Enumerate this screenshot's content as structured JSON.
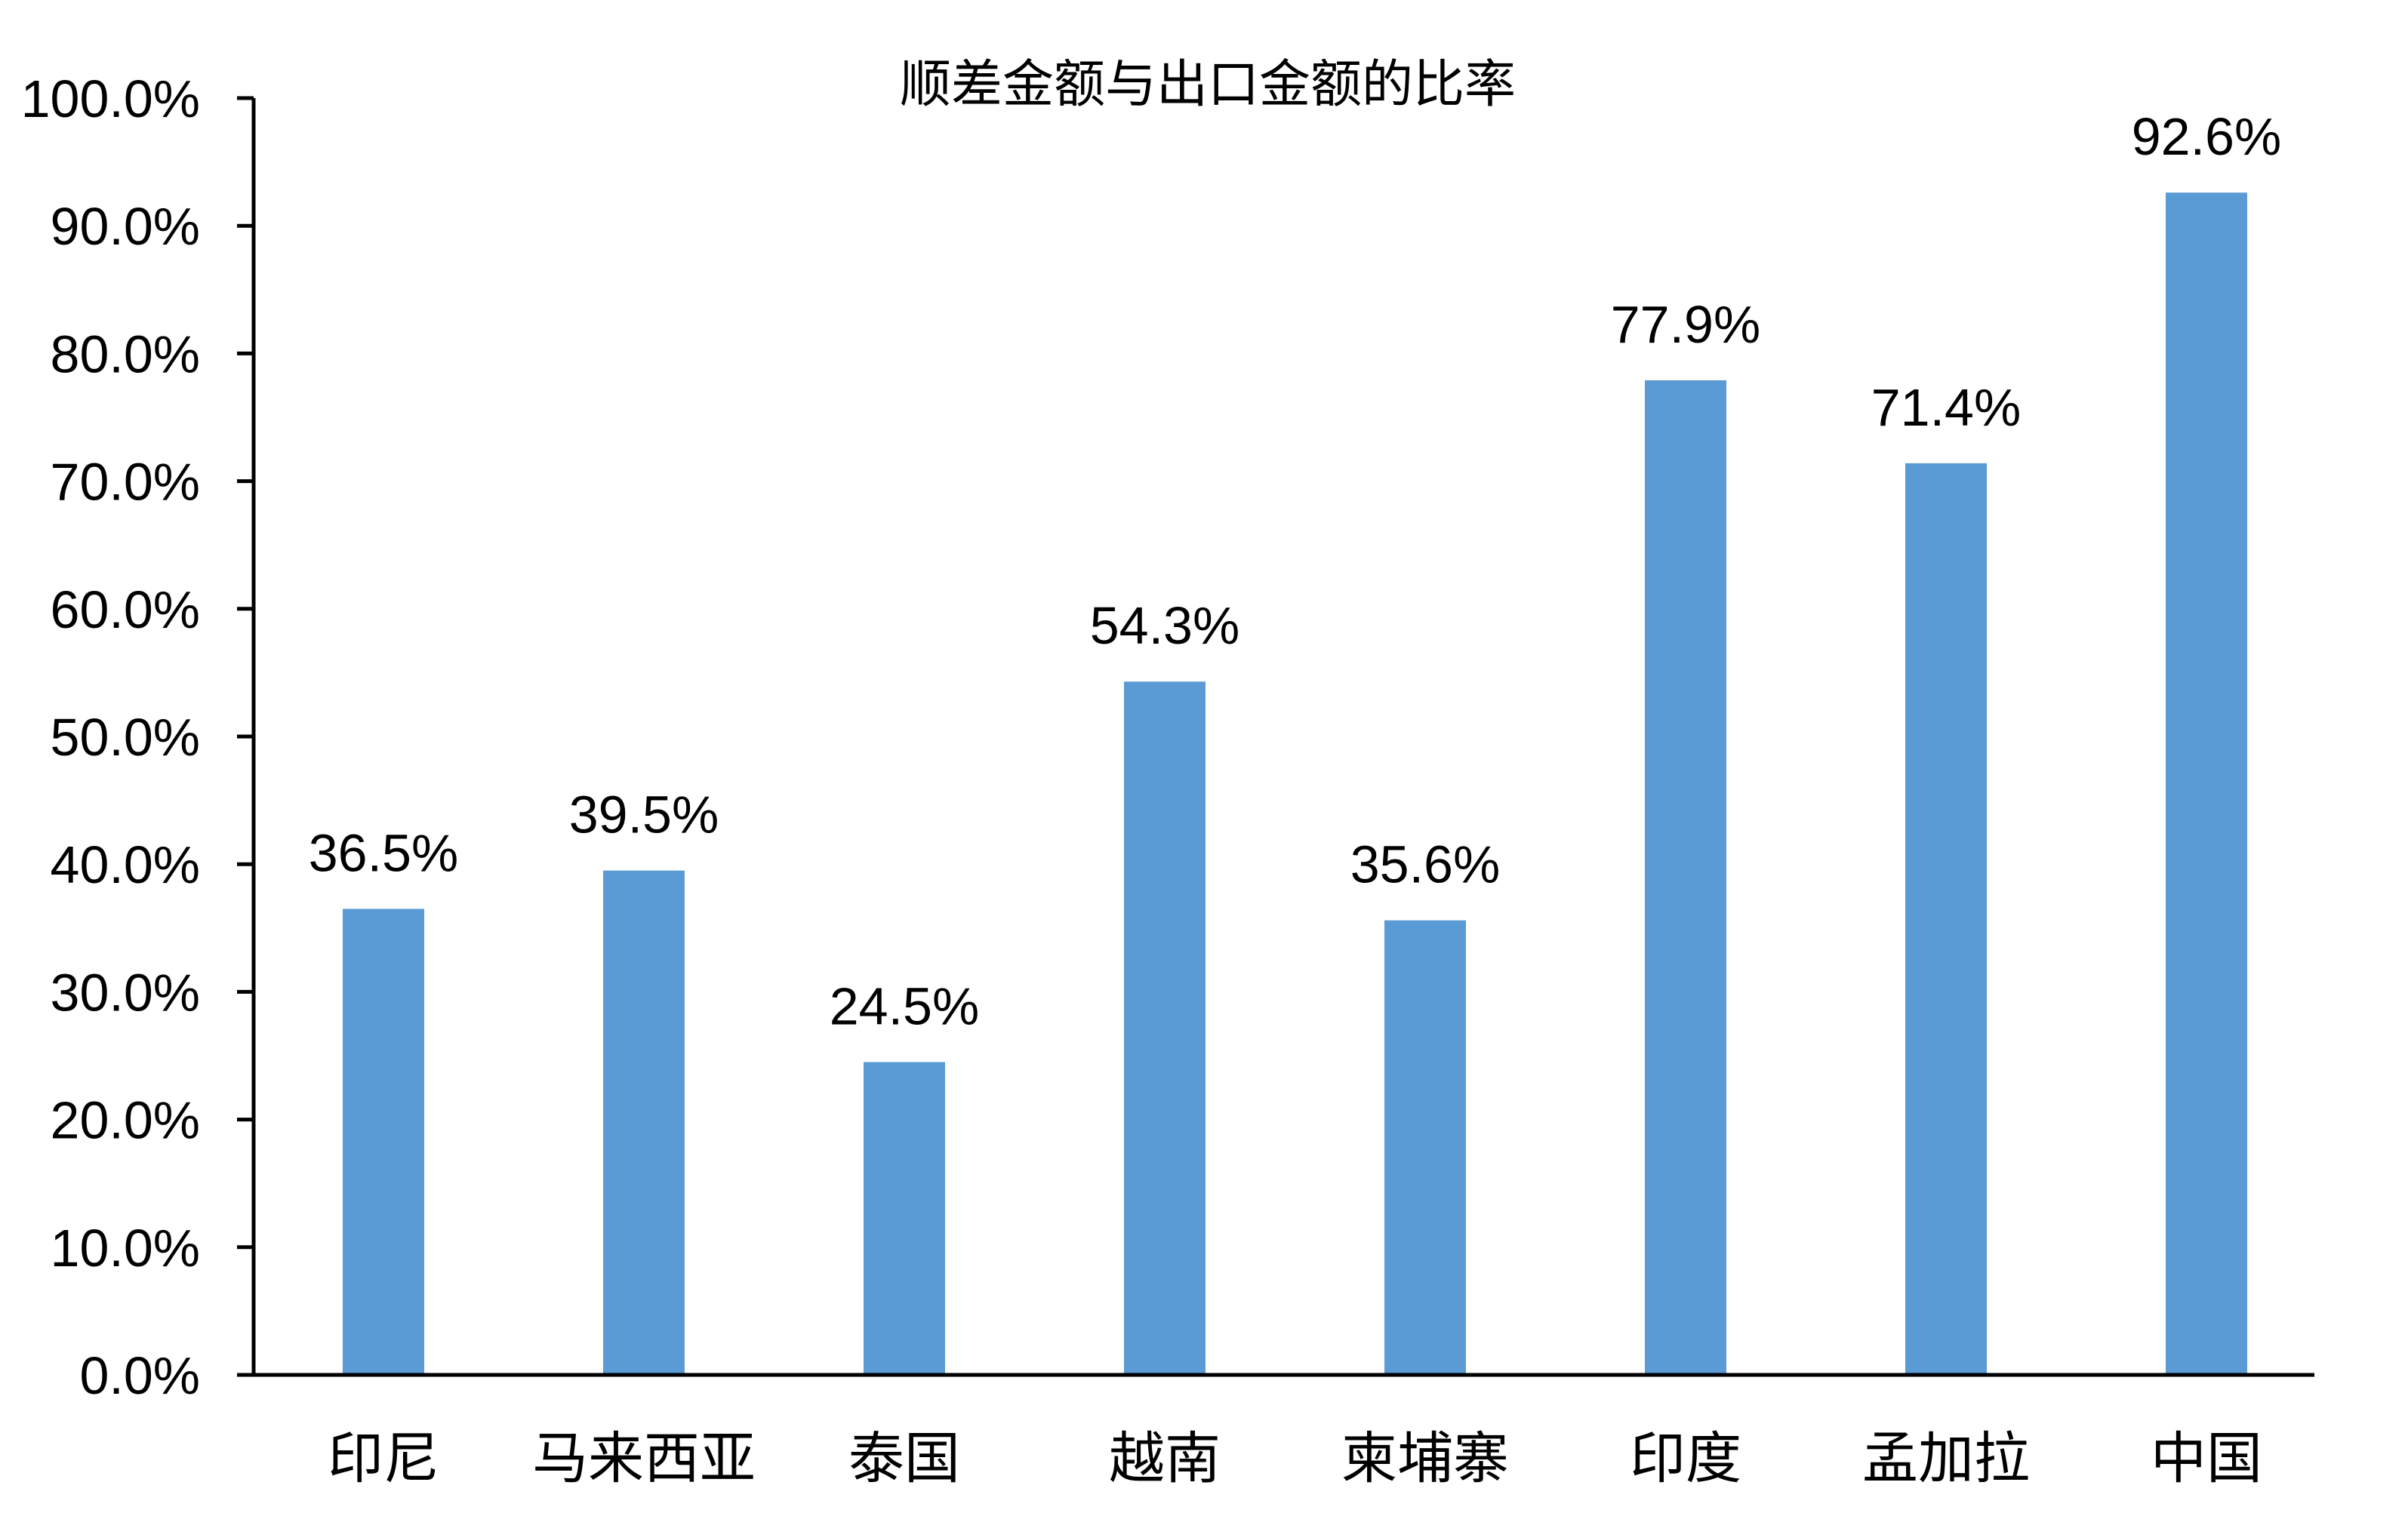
{
  "chart_data": {
    "type": "bar",
    "title": "顺差金额与出口金额的比率",
    "categories": [
      "印尼",
      "马来西亚",
      "泰国",
      "越南",
      "柬埔寨",
      "印度",
      "孟加拉",
      "中国"
    ],
    "values": [
      36.5,
      39.5,
      24.5,
      54.3,
      35.6,
      77.9,
      71.4,
      92.6
    ],
    "data_labels": [
      "36.5%",
      "39.5%",
      "24.5%",
      "54.3%",
      "35.6%",
      "77.9%",
      "71.4%",
      "92.6%"
    ],
    "y_ticks": [
      "0.0%",
      "10.0%",
      "20.0%",
      "30.0%",
      "40.0%",
      "50.0%",
      "60.0%",
      "70.0%",
      "80.0%",
      "90.0%",
      "100.0%"
    ],
    "ylim": [
      0,
      100
    ],
    "xlabel": "",
    "ylabel": "",
    "grid": false,
    "legend": "none",
    "bar_color": "#5b9bd5"
  }
}
